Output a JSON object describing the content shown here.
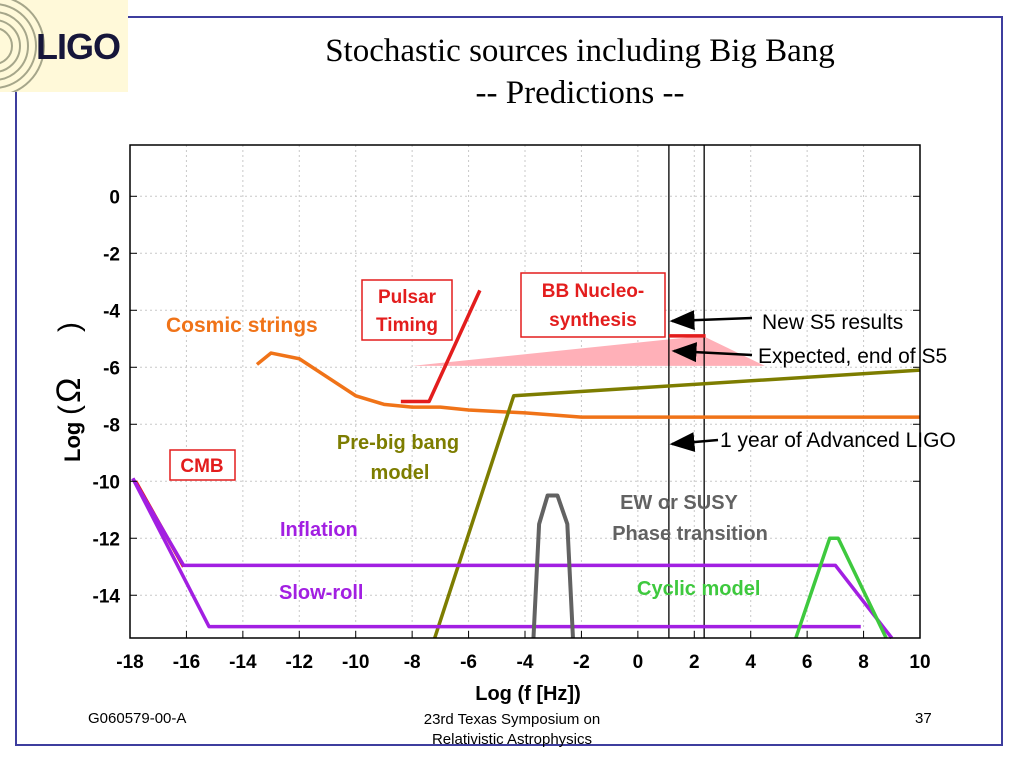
{
  "logo": {
    "text": "LIGO"
  },
  "slide": {
    "title_line1": "Stochastic sources including Big Bang",
    "title_line2": "-- Predictions --",
    "footer_left": "G060579-00-A",
    "footer_center_line1": "23rd Texas Symposium on",
    "footer_center_line2": "Relativistic Astrophysics",
    "footer_right": "37"
  },
  "colors": {
    "frame": "#3d3d9e",
    "red": "#e31d1d",
    "orange": "#f07318",
    "olive": "#7d7d00",
    "purple": "#a21fe2",
    "gray": "#626262",
    "green": "#3ec93e",
    "pink": "#ffb0b8"
  },
  "chart_data": {
    "type": "line",
    "title": "",
    "xlabel": "Log (f [Hz])",
    "ylabel_prefix": "Log",
    "ylabel_symbol": "Ω",
    "ylabel_paren_open": "(",
    "ylabel_paren_close": ")",
    "xlim": [
      -18,
      10
    ],
    "ylim": [
      -15.5,
      1.8
    ],
    "xticks": [
      -18,
      -16,
      -14,
      -12,
      -10,
      -8,
      -6,
      -4,
      -2,
      0,
      2,
      4,
      6,
      8,
      10
    ],
    "yticks": [
      0,
      -2,
      -4,
      -6,
      -8,
      -10,
      -12,
      -14
    ],
    "grid": true,
    "series": [
      {
        "key": "cmb",
        "color": "#e31d1d",
        "width": 3.5,
        "x": [
          -17.8,
          -16.1
        ],
        "y": [
          -10.0,
          -13.0
        ]
      },
      {
        "key": "pulsar",
        "color": "#e31d1d",
        "width": 3.5,
        "x": [
          -8.4,
          -7.4,
          -5.6
        ],
        "y": [
          -7.2,
          -7.2,
          -3.3
        ]
      },
      {
        "key": "bbn",
        "color": "#e31d1d",
        "width": 3.5,
        "x": [
          1.1,
          2.4
        ],
        "y": [
          -4.9,
          -4.9
        ]
      },
      {
        "key": "cosmic-strings",
        "color": "#f07318",
        "width": 3.5,
        "x": [
          -13.5,
          -13.0,
          -12.0,
          -10.0,
          -9.0,
          -8.0,
          -7.0,
          -6.0,
          -4.0,
          -2.0,
          0.0,
          2.0,
          4.0,
          6.0,
          8.0,
          10.0
        ],
        "y": [
          -5.9,
          -5.5,
          -5.7,
          -7.0,
          -7.3,
          -7.4,
          -7.4,
          -7.5,
          -7.6,
          -7.75,
          -7.75,
          -7.75,
          -7.75,
          -7.75,
          -7.75,
          -7.75
        ]
      },
      {
        "key": "pre-big-bang",
        "color": "#7d7d00",
        "width": 3.5,
        "x": [
          -7.2,
          -4.4,
          10.0
        ],
        "y": [
          -15.5,
          -7.0,
          -6.1
        ]
      },
      {
        "key": "inflation",
        "color": "#a21fe2",
        "width": 3.5,
        "x": [
          -17.9,
          -16.1,
          7.0,
          9.0
        ],
        "y": [
          -9.9,
          -12.95,
          -12.95,
          -15.5
        ]
      },
      {
        "key": "slow-roll",
        "color": "#a21fe2",
        "width": 3.5,
        "x": [
          -17.9,
          -15.2,
          7.9
        ],
        "y": [
          -9.9,
          -15.1,
          -15.1
        ]
      },
      {
        "key": "ew-susy",
        "color": "#626262",
        "width": 4,
        "x": [
          -3.7,
          -3.5,
          -3.2,
          -2.85,
          -2.5,
          -2.3
        ],
        "y": [
          -15.5,
          -11.5,
          -10.5,
          -10.5,
          -11.5,
          -15.5
        ]
      },
      {
        "key": "cyclic",
        "color": "#3ec93e",
        "width": 3.5,
        "x": [
          5.6,
          6.8,
          7.1,
          8.8
        ],
        "y": [
          -15.5,
          -12.0,
          -12.0,
          -15.5
        ]
      }
    ],
    "vertical_lines": [
      1.1,
      2.35
    ],
    "expected_region": {
      "color": "#ffb0b8",
      "x": [
        -8.0,
        2.3,
        4.5
      ],
      "y": [
        -5.95,
        -4.9,
        -5.95
      ]
    },
    "labels": {
      "cosmic_strings": "Cosmic strings",
      "pulsar_line1": "Pulsar",
      "pulsar_line2": "Timing",
      "bbn_line1": "BB Nucleo-",
      "bbn_line2": "synthesis",
      "pre_bb_line1": "Pre-big bang",
      "pre_bb_line2": "model",
      "cmb": "CMB",
      "inflation": "Inflation",
      "slow_roll": "Slow-roll",
      "ew_line1": "EW or SUSY",
      "ew_line2": "Phase transition",
      "cyclic": "Cyclic model"
    },
    "annotations": {
      "s5_results": "New S5 results",
      "expected_s5": "Expected, end of S5",
      "advanced_ligo": "1 year of Advanced LIGO"
    }
  }
}
